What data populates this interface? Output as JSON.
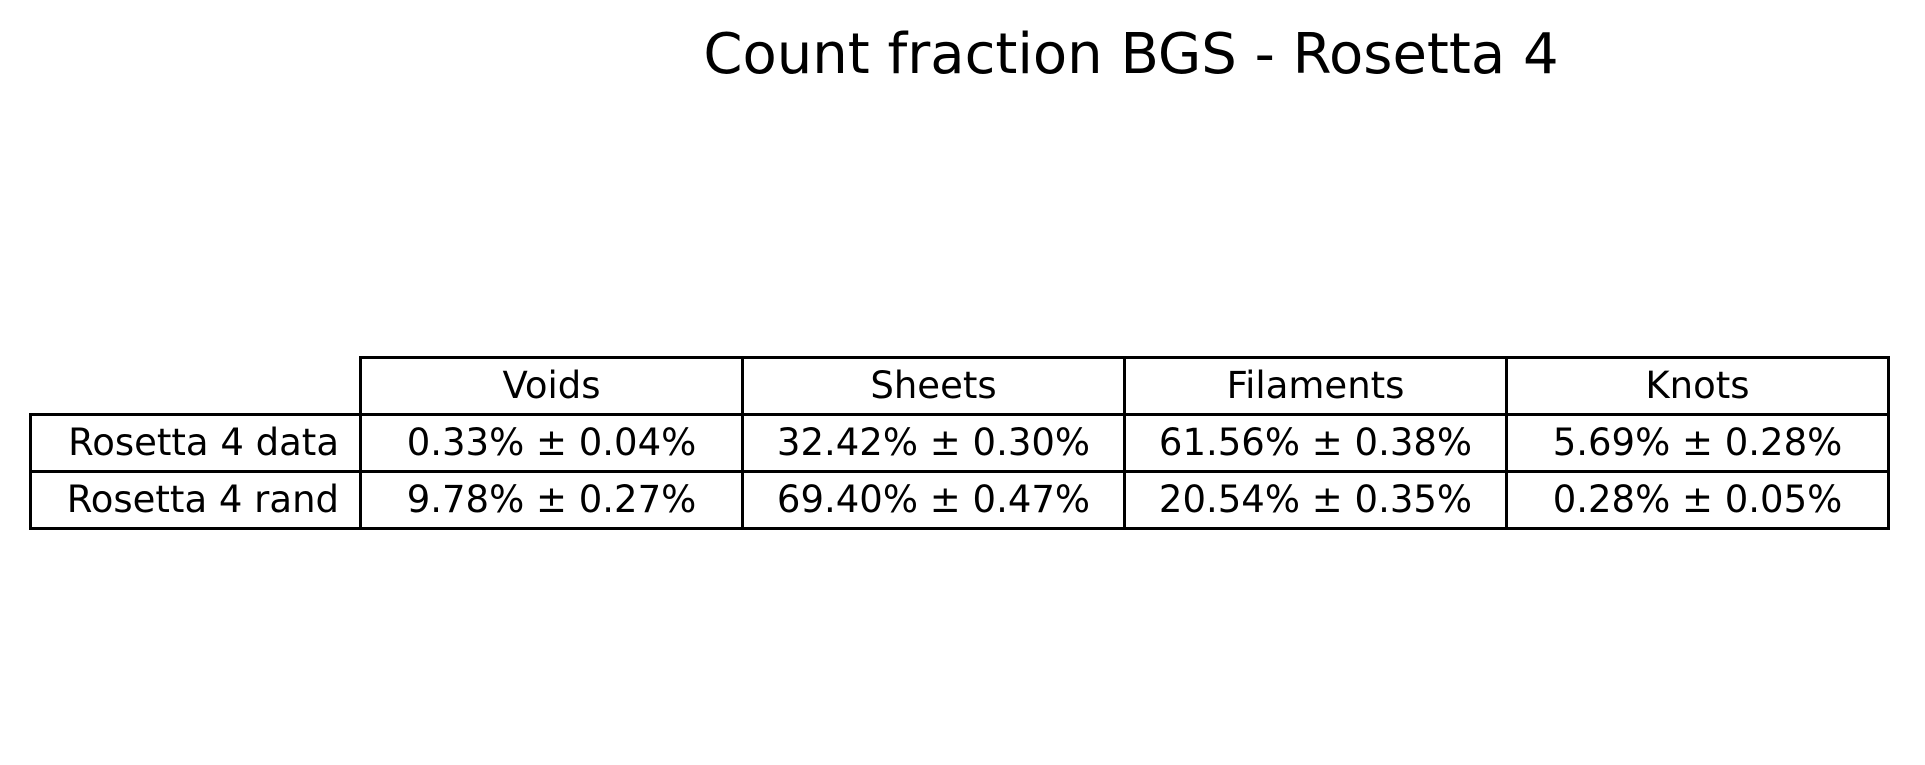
{
  "title": "Count fraction BGS - Rosetta 4",
  "chart_data": {
    "type": "table",
    "title": "Count fraction BGS - Rosetta 4",
    "columns": [
      "Voids",
      "Sheets",
      "Filaments",
      "Knots"
    ],
    "rows": [
      {
        "label": "Rosetta 4 data",
        "cells": [
          "0.33% ± 0.04%",
          "32.42% ± 0.30%",
          "61.56% ± 0.38%",
          "5.69% ± 0.28%"
        ],
        "values": [
          0.33,
          32.42,
          61.56,
          5.69
        ],
        "errors": [
          0.04,
          0.3,
          0.38,
          0.28
        ]
      },
      {
        "label": "Rosetta 4 rand",
        "cells": [
          "9.78% ± 0.27%",
          "69.40% ± 0.47%",
          "20.54% ± 0.35%",
          "0.28% ± 0.05%"
        ],
        "values": [
          9.78,
          69.4,
          20.54,
          0.28
        ],
        "errors": [
          0.27,
          0.47,
          0.35,
          0.05
        ]
      }
    ],
    "unit": "%"
  }
}
